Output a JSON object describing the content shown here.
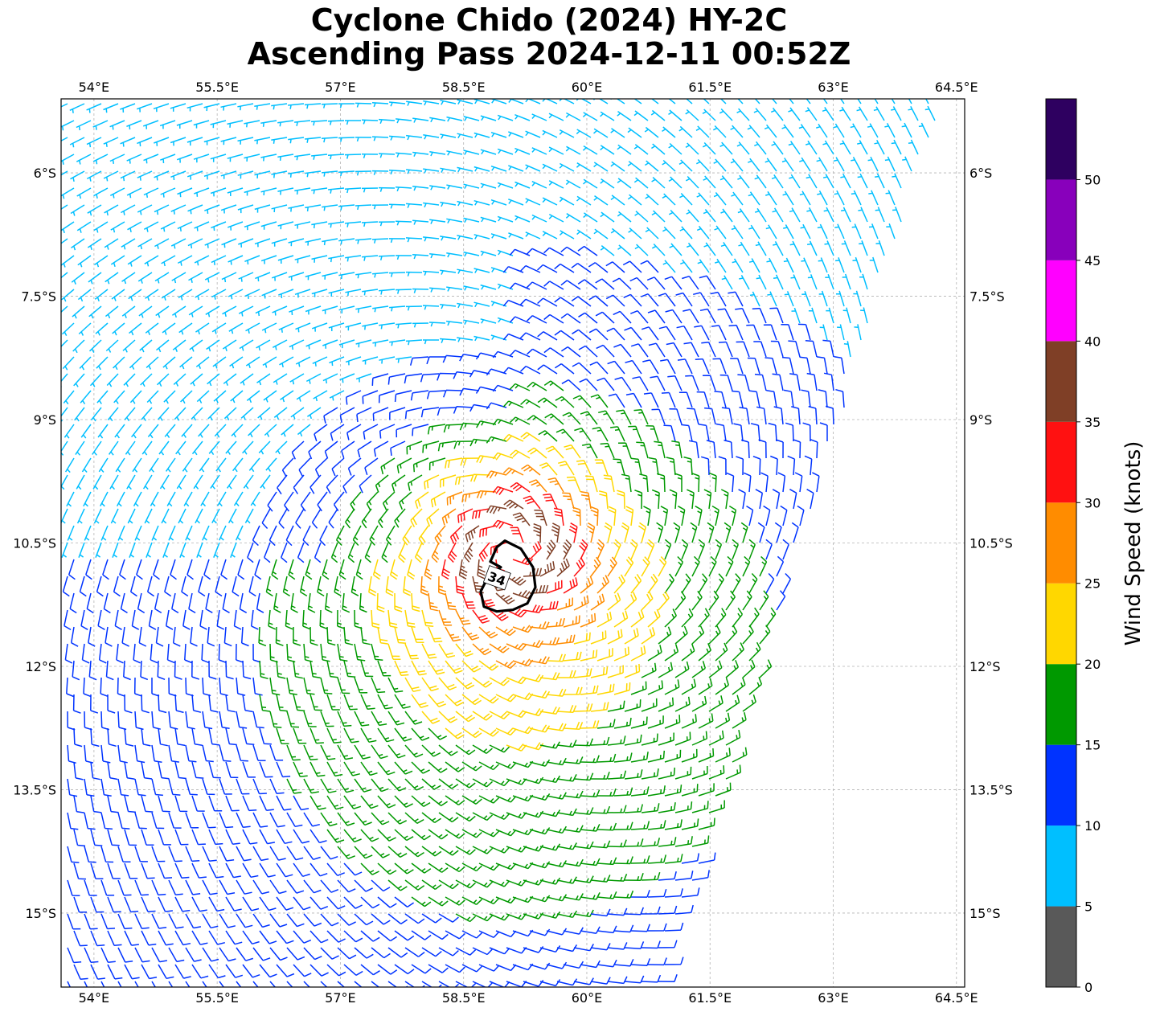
{
  "title": {
    "line1": "Cyclone Chido (2024) HY-2C",
    "line2": "Ascending Pass 2024-12-11 00:52Z"
  },
  "map": {
    "lon_range": [
      53.6,
      64.6
    ],
    "lat_range": [
      -5.1,
      -15.9
    ],
    "lon_ticks": [
      54,
      55.5,
      57,
      58.5,
      60,
      61.5,
      63,
      64.5
    ],
    "lon_tick_labels": [
      "54°E",
      "55.5°E",
      "57°E",
      "58.5°E",
      "60°E",
      "61.5°E",
      "63°E",
      "64.5°E"
    ],
    "lat_ticks": [
      -6,
      -7.5,
      -9,
      -10.5,
      -12,
      -13.5,
      -15
    ],
    "lat_tick_labels": [
      "6°S",
      "7.5°S",
      "9°S",
      "10.5°S",
      "12°S",
      "13.5°S",
      "15°S"
    ],
    "grid": true,
    "cyclone_center": {
      "lon": 59.1,
      "lat": -10.6
    },
    "swath_east_edge_lon": {
      "at_lat_north": -5.1,
      "lon_north": 64.4,
      "at_lat_south": -15.9,
      "lon_south": 61.0
    },
    "wind_field": "wind barbs colored by speed (knots), cyclonic rotation around center",
    "contour_label": "34"
  },
  "colorbar": {
    "label": "Wind Speed (knots)",
    "tick_labels": [
      "0",
      "5",
      "10",
      "15",
      "20",
      "25",
      "30",
      "35",
      "40",
      "45",
      "50"
    ],
    "bins": [
      {
        "min": 0,
        "max": 5,
        "color": "#595959"
      },
      {
        "min": 5,
        "max": 10,
        "color": "#00bfff"
      },
      {
        "min": 10,
        "max": 15,
        "color": "#0033ff"
      },
      {
        "min": 15,
        "max": 20,
        "color": "#009900"
      },
      {
        "min": 20,
        "max": 25,
        "color": "#ffd700"
      },
      {
        "min": 25,
        "max": 30,
        "color": "#ff8c00"
      },
      {
        "min": 30,
        "max": 35,
        "color": "#ff1111"
      },
      {
        "min": 35,
        "max": 40,
        "color": "#7f3f26"
      },
      {
        "min": 40,
        "max": 45,
        "color": "#ff00ff"
      },
      {
        "min": 45,
        "max": 50,
        "color": "#8800bb"
      },
      {
        "min": 50,
        "max": 55,
        "color": "#2e0060"
      }
    ]
  }
}
